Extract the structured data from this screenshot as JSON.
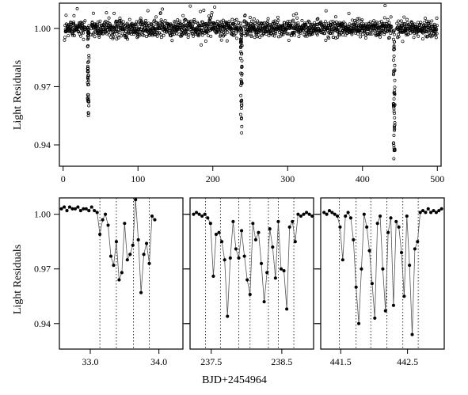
{
  "figure": {
    "ylabel": "Light Residuals",
    "xlabel": "BJD+2454964"
  },
  "chart_data": [
    {
      "type": "scatter",
      "panel": "top",
      "xlim": [
        -5,
        505
      ],
      "ylim": [
        0.929,
        1.013
      ],
      "x_ticks": [
        0,
        100,
        200,
        300,
        400,
        500
      ],
      "x_tick_labels": [
        "0",
        "100",
        "200",
        "300",
        "400",
        "500"
      ],
      "y_ticks": [
        0.94,
        0.97,
        1.0
      ],
      "y_tick_labels": [
        "0.94",
        "0.97",
        "1.00"
      ],
      "baseline": 1.0,
      "scatter": 0.0022,
      "n_points": 1700,
      "eclipses": [
        {
          "center": 33.6,
          "min": 0.955
        },
        {
          "center": 238.1,
          "min": 0.946
        },
        {
          "center": 442.3,
          "min": 0.932
        }
      ],
      "grid": false,
      "legend": "none"
    },
    {
      "type": "line",
      "panel": "bottom-left",
      "xlim": [
        32.55,
        34.35
      ],
      "ylim": [
        0.926,
        1.009
      ],
      "x_ticks": [
        33.0,
        34.0
      ],
      "x_tick_labels": [
        "33.0",
        "34.0"
      ],
      "y_ticks": [
        0.94,
        0.97,
        1.0
      ],
      "y_tick_labels": [
        "0.94",
        "0.97",
        "1.00"
      ],
      "vlines": [
        33.14,
        33.38,
        33.63,
        33.86
      ],
      "x": [
        32.58,
        32.62,
        32.66,
        32.7,
        32.74,
        32.78,
        32.82,
        32.86,
        32.9,
        32.94,
        32.98,
        33.02,
        33.06,
        33.1,
        33.14,
        33.18,
        33.22,
        33.26,
        33.3,
        33.34,
        33.38,
        33.42,
        33.46,
        33.5,
        33.54,
        33.58,
        33.62,
        33.66,
        33.7,
        33.74,
        33.78,
        33.82,
        33.86,
        33.9,
        33.94
      ],
      "y": [
        1.003,
        1.004,
        1.002,
        1.004,
        1.003,
        1.003,
        1.004,
        1.002,
        1.003,
        1.003,
        1.002,
        1.004,
        1.002,
        1.001,
        0.989,
        0.997,
        1.0,
        0.994,
        0.977,
        0.972,
        0.985,
        0.964,
        0.968,
        0.995,
        0.975,
        0.978,
        0.983,
        1.008,
        0.986,
        0.957,
        0.978,
        0.984,
        0.973,
        0.999,
        0.997
      ],
      "grid": false,
      "legend": "none"
    },
    {
      "type": "line",
      "panel": "bottom-middle",
      "xlim": [
        237.2,
        238.95
      ],
      "ylim": [
        0.926,
        1.009
      ],
      "x_ticks": [
        237.5,
        238.5
      ],
      "x_tick_labels": [
        "237.5",
        "238.5"
      ],
      "y_ticks": [
        0.94,
        0.97,
        1.0
      ],
      "y_tick_labels": [
        "0.94",
        "0.97",
        "1.00"
      ],
      "vlines": [
        237.42,
        237.63,
        237.89,
        238.05,
        238.31,
        238.45,
        238.67
      ],
      "x": [
        237.25,
        237.29,
        237.33,
        237.37,
        237.41,
        237.45,
        237.49,
        237.53,
        237.57,
        237.61,
        237.65,
        237.69,
        237.73,
        237.77,
        237.81,
        237.85,
        237.89,
        237.93,
        237.97,
        238.01,
        238.05,
        238.09,
        238.13,
        238.17,
        238.21,
        238.25,
        238.29,
        238.33,
        238.37,
        238.41,
        238.45,
        238.49,
        238.53,
        238.57,
        238.61,
        238.65,
        238.69,
        238.73,
        238.77,
        238.81,
        238.85,
        238.89,
        238.93
      ],
      "y": [
        1.0,
        1.001,
        1.0,
        0.999,
        1.0,
        0.998,
        0.995,
        0.966,
        0.989,
        0.99,
        0.985,
        0.975,
        0.944,
        0.976,
        0.996,
        0.981,
        0.976,
        0.991,
        0.977,
        0.964,
        0.956,
        0.995,
        0.986,
        0.99,
        0.973,
        0.952,
        0.968,
        0.992,
        0.982,
        0.965,
        0.996,
        0.97,
        0.969,
        0.948,
        0.993,
        0.996,
        0.985,
        1.0,
        0.999,
        1.0,
        1.001,
        1.0,
        0.999
      ],
      "grid": false,
      "legend": "none"
    },
    {
      "type": "line",
      "panel": "bottom-right",
      "xlim": [
        441.2,
        443.05
      ],
      "ylim": [
        0.926,
        1.009
      ],
      "x_ticks": [
        441.5,
        442.5
      ],
      "x_tick_labels": [
        "441.5",
        "442.5"
      ],
      "y_ticks": [
        0.94,
        0.97,
        1.0
      ],
      "y_tick_labels": [
        "0.94",
        "0.97",
        "1.00"
      ],
      "vlines": [
        441.48,
        441.73,
        441.95,
        442.19,
        442.43,
        442.66
      ],
      "x": [
        441.25,
        441.29,
        441.33,
        441.37,
        441.41,
        441.45,
        441.49,
        441.53,
        441.57,
        441.61,
        441.65,
        441.69,
        441.73,
        441.77,
        441.81,
        441.85,
        441.89,
        441.93,
        441.97,
        442.01,
        442.05,
        442.09,
        442.13,
        442.17,
        442.21,
        442.25,
        442.29,
        442.33,
        442.37,
        442.41,
        442.45,
        442.49,
        442.53,
        442.57,
        442.61,
        442.65,
        442.69,
        442.73,
        442.77,
        442.81,
        442.85,
        442.89,
        442.93,
        442.97,
        443.01
      ],
      "y": [
        1.001,
        1.0,
        1.002,
        1.001,
        1.0,
        0.999,
        0.993,
        0.975,
        0.999,
        1.001,
        0.998,
        0.986,
        0.96,
        0.94,
        0.97,
        1.0,
        0.993,
        0.98,
        0.962,
        0.943,
        0.995,
        0.999,
        0.97,
        0.947,
        0.99,
        0.998,
        0.95,
        0.996,
        0.993,
        0.979,
        0.955,
        0.999,
        0.972,
        0.934,
        0.981,
        0.985,
        1.001,
        1.002,
        1.001,
        1.003,
        1.001,
        1.002,
        1.001,
        1.002,
        1.003
      ],
      "grid": false,
      "legend": "none"
    }
  ]
}
